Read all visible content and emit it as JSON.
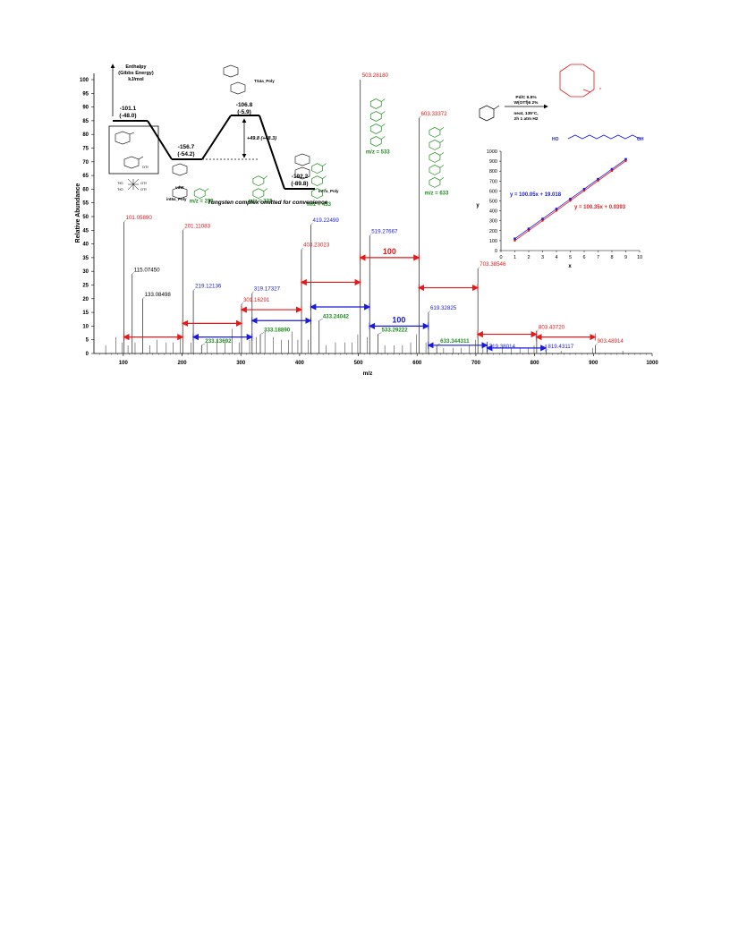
{
  "chart_data": [
    {
      "type": "bar",
      "ylabel": "Relative Abundance",
      "xlabel": "m/z",
      "xlim": [
        50,
        1000
      ],
      "ylim": [
        0,
        100
      ],
      "xticks": [
        "100",
        "200",
        "300",
        "400",
        "500",
        "600",
        "700",
        "800",
        "900",
        "1000"
      ],
      "yticks": [
        "0",
        "5",
        "10",
        "15",
        "20",
        "25",
        "30",
        "35",
        "40",
        "45",
        "50",
        "55",
        "60",
        "65",
        "70",
        "75",
        "80",
        "85",
        "90",
        "95",
        "100"
      ],
      "peaks": [
        {
          "mz": 101.0589,
          "y": 48,
          "label": "101.05890",
          "color": "red"
        },
        {
          "mz": 115.0745,
          "y": 29,
          "label": "115.07450",
          "color": "black"
        },
        {
          "mz": 133.08498,
          "y": 20,
          "label": "133.08498",
          "color": "black"
        },
        {
          "mz": 201.11083,
          "y": 45,
          "label": "201.11083",
          "color": "red"
        },
        {
          "mz": 219.12136,
          "y": 23,
          "label": "219.12136",
          "color": "blue"
        },
        {
          "mz": 233.13692,
          "y": 3,
          "label": "233.13692",
          "color": "green"
        },
        {
          "mz": 301.16291,
          "y": 18,
          "label": "301.16291",
          "color": "red"
        },
        {
          "mz": 319.17327,
          "y": 22,
          "label": "319.17327",
          "color": "blue"
        },
        {
          "mz": 333.1889,
          "y": 7,
          "label": "333.18890",
          "color": "green"
        },
        {
          "mz": 403.23023,
          "y": 38,
          "label": "403.23023",
          "color": "red"
        },
        {
          "mz": 419.22499,
          "y": 47,
          "label": "419.22499",
          "color": "blue"
        },
        {
          "mz": 433.24042,
          "y": 12,
          "label": "433.24042",
          "color": "green"
        },
        {
          "mz": 503.2818,
          "y": 100,
          "label": "503.28180",
          "color": "red"
        },
        {
          "mz": 519.27667,
          "y": 43,
          "label": "519.27667",
          "color": "blue"
        },
        {
          "mz": 533.29222,
          "y": 7,
          "label": "533.29222",
          "color": "green"
        },
        {
          "mz": 603.33372,
          "y": 86,
          "label": "603.33372",
          "color": "red"
        },
        {
          "mz": 619.32825,
          "y": 15,
          "label": "619.32825",
          "color": "blue"
        },
        {
          "mz": 633.34431,
          "y": 3,
          "label": "633.344311",
          "color": "green"
        },
        {
          "mz": 703.38546,
          "y": 31,
          "label": "703.38546",
          "color": "red"
        },
        {
          "mz": 719.38014,
          "y": 1,
          "label": "719.38014",
          "color": "blue"
        },
        {
          "mz": 803.4372,
          "y": 8,
          "label": "803.43720",
          "color": "red"
        },
        {
          "mz": 819.43117,
          "y": 1,
          "label": "819.43117",
          "color": "blue"
        },
        {
          "mz": 903.48914,
          "y": 3,
          "label": "903.48914",
          "color": "red"
        }
      ],
      "minor_peaks": [
        {
          "mz": 70,
          "y": 3
        },
        {
          "mz": 87,
          "y": 6
        },
        {
          "mz": 98,
          "y": 4
        },
        {
          "mz": 108,
          "y": 3
        },
        {
          "mz": 120,
          "y": 4
        },
        {
          "mz": 145,
          "y": 3
        },
        {
          "mz": 157,
          "y": 5
        },
        {
          "mz": 173,
          "y": 4
        },
        {
          "mz": 185,
          "y": 4
        },
        {
          "mz": 197,
          "y": 6
        },
        {
          "mz": 215,
          "y": 4
        },
        {
          "mz": 243,
          "y": 4
        },
        {
          "mz": 259,
          "y": 5
        },
        {
          "mz": 273,
          "y": 4
        },
        {
          "mz": 285,
          "y": 9
        },
        {
          "mz": 297,
          "y": 4
        },
        {
          "mz": 315,
          "y": 5
        },
        {
          "mz": 326,
          "y": 6
        },
        {
          "mz": 341,
          "y": 8
        },
        {
          "mz": 355,
          "y": 6
        },
        {
          "mz": 369,
          "y": 5
        },
        {
          "mz": 381,
          "y": 5
        },
        {
          "mz": 387,
          "y": 8
        },
        {
          "mz": 397,
          "y": 5
        },
        {
          "mz": 415,
          "y": 5
        },
        {
          "mz": 445,
          "y": 3
        },
        {
          "mz": 461,
          "y": 4
        },
        {
          "mz": 477,
          "y": 4
        },
        {
          "mz": 489,
          "y": 4
        },
        {
          "mz": 499,
          "y": 7
        },
        {
          "mz": 515,
          "y": 6
        },
        {
          "mz": 545,
          "y": 3
        },
        {
          "mz": 561,
          "y": 3
        },
        {
          "mz": 575,
          "y": 3
        },
        {
          "mz": 589,
          "y": 4
        },
        {
          "mz": 599,
          "y": 7
        },
        {
          "mz": 615,
          "y": 4
        },
        {
          "mz": 645,
          "y": 2
        },
        {
          "mz": 661,
          "y": 2
        },
        {
          "mz": 675,
          "y": 2
        },
        {
          "mz": 689,
          "y": 3
        },
        {
          "mz": 699,
          "y": 5
        },
        {
          "mz": 712,
          "y": 2
        },
        {
          "mz": 745,
          "y": 2
        },
        {
          "mz": 760,
          "y": 2
        },
        {
          "mz": 775,
          "y": 2
        },
        {
          "mz": 789,
          "y": 2
        },
        {
          "mz": 799,
          "y": 3
        },
        {
          "mz": 845,
          "y": 1
        },
        {
          "mz": 899,
          "y": 2
        },
        {
          "mz": 950,
          "y": 1
        }
      ],
      "arrows": [
        {
          "from": 101,
          "to": 201,
          "y": 6,
          "color": "red"
        },
        {
          "from": 201,
          "to": 301,
          "y": 11,
          "color": "red"
        },
        {
          "from": 219,
          "to": 319,
          "y": 6,
          "color": "blue"
        },
        {
          "from": 301,
          "to": 403,
          "y": 16,
          "color": "red"
        },
        {
          "from": 319,
          "to": 419,
          "y": 12,
          "color": "blue"
        },
        {
          "from": 403,
          "to": 503,
          "y": 26,
          "color": "red"
        },
        {
          "from": 419,
          "to": 519,
          "y": 17,
          "color": "blue"
        },
        {
          "from": 503,
          "to": 603,
          "y": 35,
          "color": "red",
          "label": "100"
        },
        {
          "from": 519,
          "to": 619,
          "y": 10,
          "color": "blue",
          "label": "100"
        },
        {
          "from": 603,
          "to": 703,
          "y": 24,
          "color": "red"
        },
        {
          "from": 619,
          "to": 719,
          "y": 3,
          "color": "blue"
        },
        {
          "from": 703,
          "to": 803,
          "y": 7,
          "color": "red"
        },
        {
          "from": 719,
          "to": 819,
          "y": 2,
          "color": "blue"
        },
        {
          "from": 803,
          "to": 903,
          "y": 6,
          "color": "red"
        }
      ],
      "fragment_labels": [
        {
          "text": "m/z = 233",
          "mz": 233
        },
        {
          "text": "m/z = 333",
          "mz": 333
        },
        {
          "text": "m/z = 433",
          "mz": 433
        },
        {
          "text": "m/z = 533",
          "mz": 533
        },
        {
          "text": "m/z = 633",
          "mz": 633
        }
      ]
    },
    {
      "type": "line",
      "xlabel": "x",
      "ylabel": "y",
      "xlim": [
        0,
        10
      ],
      "ylim": [
        0,
        1000
      ],
      "xticks": [
        "0",
        "1",
        "2",
        "3",
        "4",
        "5",
        "6",
        "7",
        "8",
        "9",
        "10"
      ],
      "yticks": [
        "0",
        "100",
        "200",
        "300",
        "400",
        "500",
        "600",
        "700",
        "800",
        "900",
        "1000"
      ],
      "series": [
        {
          "fit": "y = 100.05x + 19.018",
          "slope": 100.05,
          "intercept": 19.018,
          "color": "blue",
          "x": [
            1,
            2,
            3,
            4,
            5,
            6,
            7,
            8,
            9
          ]
        },
        {
          "fit": "y = 100.35x + 0.0393",
          "slope": 100.35,
          "intercept": 0.0393,
          "color": "red",
          "x": [
            1,
            2,
            3,
            4,
            5,
            6,
            7,
            8,
            9
          ]
        }
      ]
    }
  ],
  "energy_diagram": {
    "axis_label": "Enthalpy",
    "axis_sub1": "(Gibbs Energy)",
    "axis_sub2": "kJ/mol",
    "note": "Tungsten complex omitted for convenience",
    "barrier": "+49.8 (+48.3)",
    "levels": [
      {
        "value": "-101.1",
        "gibbs": "(-48.0)"
      },
      {
        "value": "-156.7",
        "gibbs": "(-54.2)",
        "name1": "vdW",
        "name2": "int6a_Poly"
      },
      {
        "value": "-106.8",
        "gibbs": "(-5.9)",
        "name1": "TS4a_Poly"
      },
      {
        "value": "-192.2",
        "gibbs": "(-89.8)",
        "name1": "int7a_Poly"
      }
    ],
    "otf": "OTf",
    "tfo1": "TfO",
    "tfo2": "TfO",
    "w_otf1": "OTf",
    "w_otf2": "OTf"
  },
  "reaction": {
    "cond1": "Pd/C 6.5%",
    "cond2": "W(OTf)6 2%",
    "cond3": "neat, 135°C,",
    "cond4": "2h 1 atm H2",
    "ho": "HO",
    "oh": "OH",
    "n": "n"
  }
}
